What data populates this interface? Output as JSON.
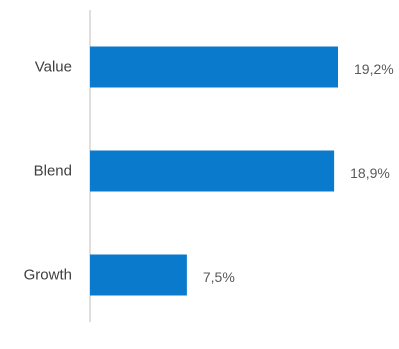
{
  "chart_data": {
    "type": "bar",
    "orientation": "horizontal",
    "categories": [
      "Value",
      "Blend",
      "Growth"
    ],
    "values": [
      19.2,
      18.9,
      7.5
    ],
    "data_labels": [
      "19,2%",
      "18,9%",
      "7,5%"
    ],
    "unit": "%",
    "xlim": [
      0,
      19.2
    ],
    "title": "",
    "xlabel": "",
    "ylabel": "",
    "grid": false,
    "legend": "none",
    "bar_color": "#0a7acd",
    "axis_color": "#bfbfbf",
    "label_color": "#404040",
    "value_label_color": "#595959"
  }
}
